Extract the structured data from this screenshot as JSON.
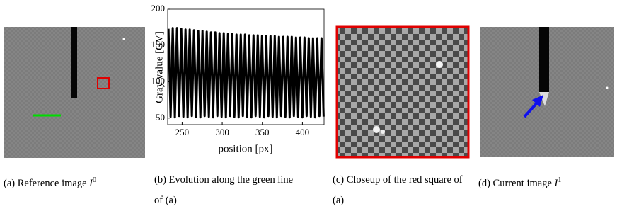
{
  "chart_data": {
    "type": "line",
    "xlabel": "position [px]",
    "ylabel": "Gray value [GV]",
    "xlim": [
      232,
      427
    ],
    "ylim": [
      41,
      200
    ],
    "xticks": [
      250,
      300,
      350,
      400
    ],
    "yticks": [
      50,
      100,
      150,
      200
    ],
    "color": "#000000",
    "x": [
      233,
      235.65,
      238.3,
      240.95,
      243.6,
      246.25,
      248.9,
      251.55,
      254.2,
      256.85,
      259.5,
      262.15,
      264.8,
      267.45,
      270.1,
      272.75,
      275.4,
      278.05,
      280.7,
      283.35,
      286,
      288.65,
      291.3,
      293.95,
      296.6,
      299.25,
      301.9,
      304.55,
      307.2,
      309.85,
      312.5,
      315.15,
      317.8,
      320.45,
      323.1,
      325.75,
      328.4,
      331.05,
      333.7,
      336.35,
      339,
      341.65,
      344.3,
      346.95,
      349.6,
      352.25,
      354.9,
      357.55,
      360.2,
      362.85,
      365.5,
      368.15,
      370.8,
      373.45,
      376.1,
      378.75,
      381.4,
      384.05,
      386.7,
      389.35,
      392,
      394.65,
      397.3,
      399.95,
      402.6,
      405.25,
      407.9,
      410.55,
      413.2,
      415.85,
      418.5,
      421.15,
      423.8,
      426.45
    ],
    "values": [
      173,
      52,
      174,
      51,
      174,
      53,
      173,
      52,
      172,
      51,
      172,
      53,
      171,
      52,
      170,
      51,
      170,
      53,
      169,
      52,
      168,
      51,
      168,
      53,
      167,
      52,
      167,
      51,
      166,
      53,
      166,
      52,
      165,
      51,
      165,
      53,
      165,
      52,
      164,
      51,
      164,
      53,
      164,
      52,
      163,
      51,
      163,
      53,
      163,
      52,
      163,
      51,
      162,
      53,
      162,
      52,
      162,
      51,
      162,
      53,
      161,
      52,
      161,
      51,
      161,
      53,
      160,
      52,
      160,
      51,
      160,
      53,
      160,
      52
    ]
  },
  "captions": [
    {
      "text": "(a) Reference image",
      "math": "I",
      "sup": "0"
    },
    {
      "text": "(b) Evolution along the green line of (a)"
    },
    {
      "text": "(c) Closeup of the red square of (a)"
    },
    {
      "text": "(d) Current image",
      "math": "I",
      "sup": "1"
    }
  ]
}
